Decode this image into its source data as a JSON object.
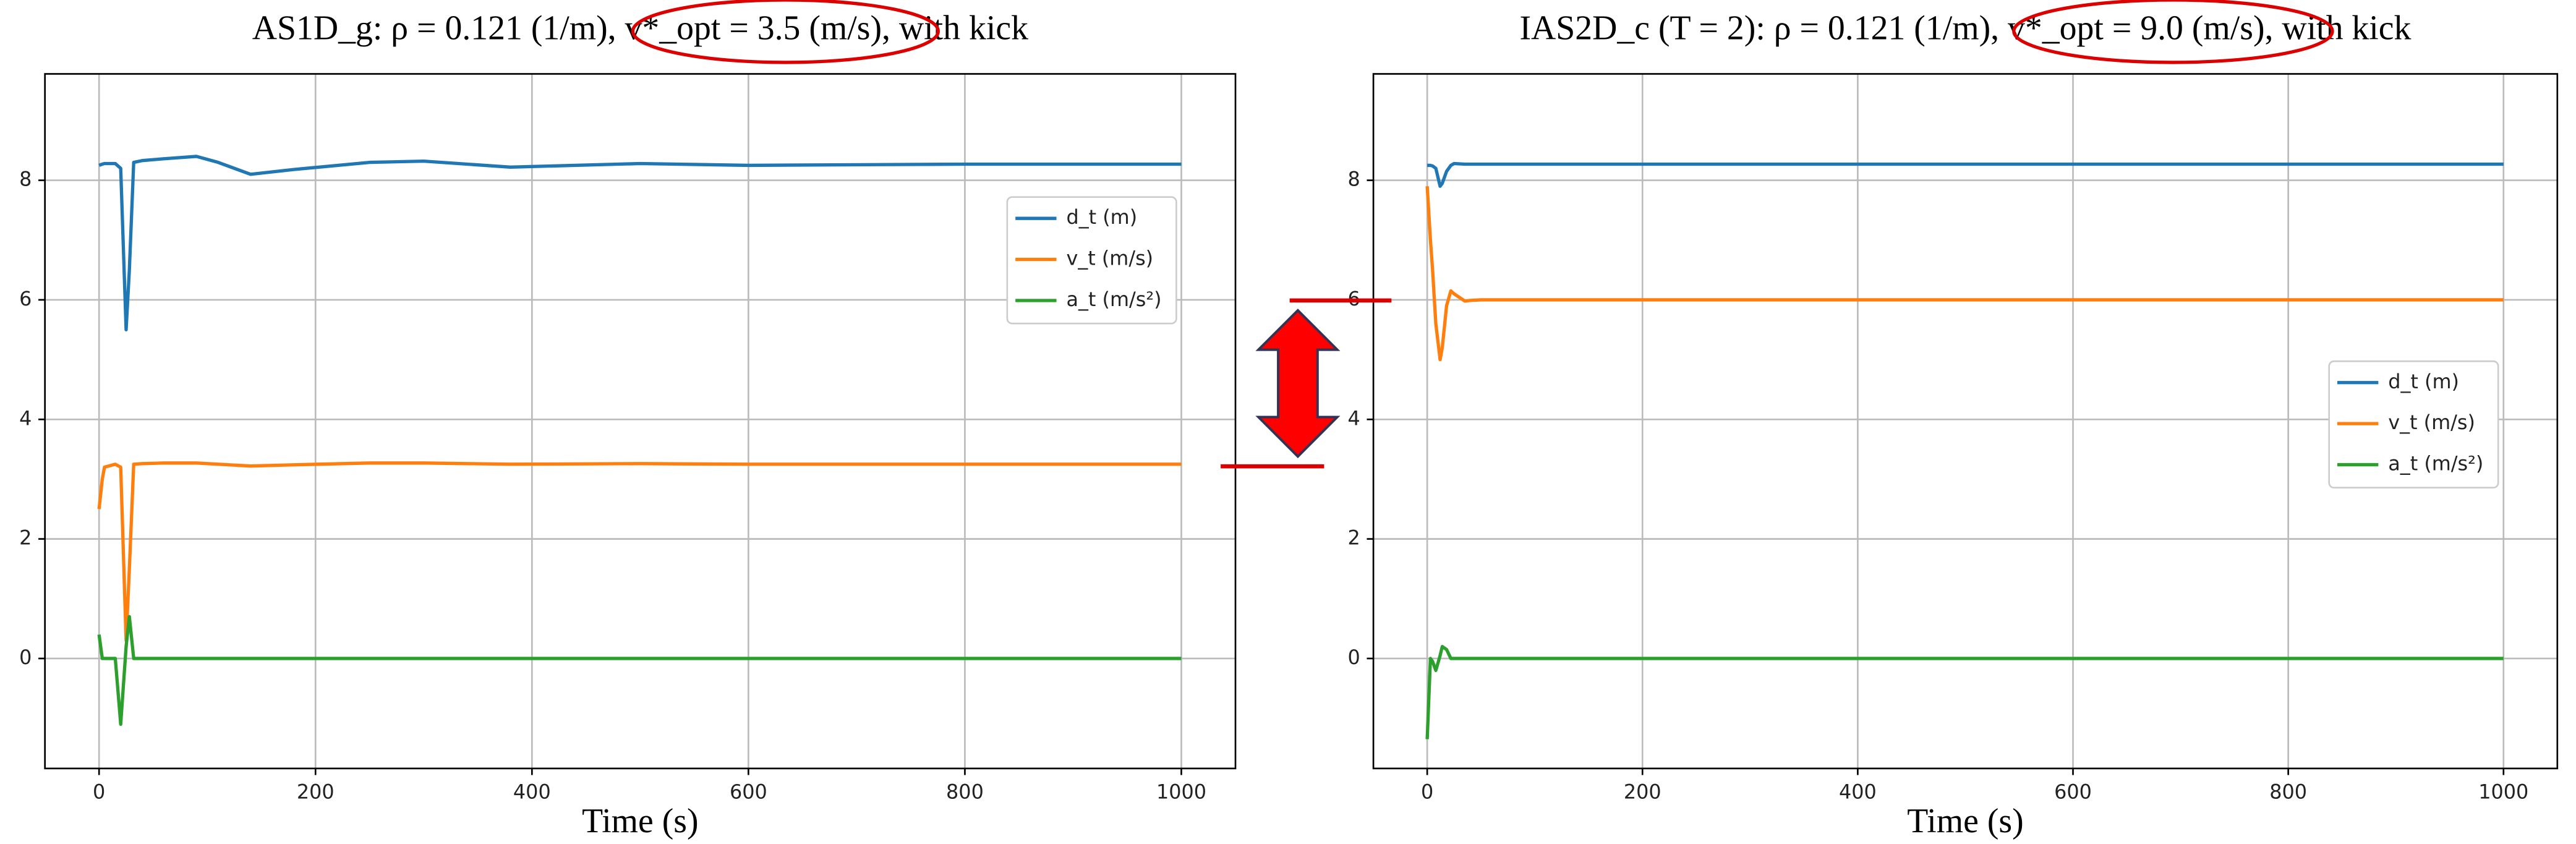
{
  "chart_data": [
    {
      "type": "line",
      "title": "AS1D_g: ρ = 0.121 (1/m), v*_opt = 3.5 (m/s), with kick",
      "x_label": "Time (s)",
      "x": [
        0,
        3,
        5,
        15,
        20,
        25,
        28,
        32,
        40,
        60,
        90,
        110,
        140,
        180,
        250,
        300,
        380,
        500,
        600,
        800,
        1000
      ],
      "series": [
        {
          "name": "d_t (m)",
          "color": "#1f77b4",
          "values": [
            8.25,
            8.27,
            8.28,
            8.28,
            8.2,
            5.5,
            6.5,
            8.3,
            8.33,
            8.36,
            8.4,
            8.3,
            8.1,
            8.18,
            8.3,
            8.32,
            8.22,
            8.28,
            8.25,
            8.27,
            8.27
          ]
        },
        {
          "name": "v_t (m/s)",
          "color": "#ff7f0e",
          "values": [
            2.5,
            3.0,
            3.2,
            3.25,
            3.2,
            0.3,
            1.5,
            3.25,
            3.26,
            3.27,
            3.27,
            3.25,
            3.22,
            3.24,
            3.27,
            3.27,
            3.25,
            3.26,
            3.25,
            3.25,
            3.25
          ]
        },
        {
          "name": "a_t (m/s²)",
          "color": "#2ca02c",
          "values": [
            0.4,
            0,
            0,
            0,
            -1.1,
            0.2,
            0.7,
            0,
            0,
            0,
            0,
            0,
            0,
            0,
            0,
            0,
            0,
            0,
            0,
            0,
            0
          ]
        }
      ],
      "xlim": [
        -50,
        1050
      ],
      "xticks": [
        0,
        200,
        400,
        600,
        800,
        1000
      ],
      "ylim": [
        -1.84,
        9.78
      ],
      "yticks": [
        0,
        2,
        4,
        6,
        8
      ],
      "grid": true,
      "legend": "upper right"
    },
    {
      "type": "line",
      "title": "IAS2D_c (T = 2): ρ = 0.121 (1/m), v*_opt = 9.0 (m/s), with kick",
      "x_label": "Time (s)",
      "x": [
        0,
        3,
        5,
        8,
        12,
        14,
        18,
        22,
        25,
        35,
        40,
        50,
        1000
      ],
      "series": [
        {
          "name": "d_t (m)",
          "color": "#1f77b4",
          "values": [
            8.25,
            8.25,
            8.24,
            8.2,
            7.9,
            7.95,
            8.15,
            8.25,
            8.28,
            8.27,
            8.27,
            8.27,
            8.27
          ]
        },
        {
          "name": "v_t (m/s)",
          "color": "#ff7f0e",
          "values": [
            7.9,
            7.0,
            6.5,
            5.6,
            5.0,
            5.2,
            5.9,
            6.15,
            6.1,
            5.98,
            5.99,
            6.0,
            6.0
          ]
        },
        {
          "name": "a_t (m/s²)",
          "color": "#2ca02c",
          "values": [
            -1.35,
            0,
            -0.05,
            -0.2,
            0.05,
            0.2,
            0.15,
            0,
            0,
            0,
            0,
            0,
            0
          ]
        }
      ],
      "xlim": [
        -50,
        1050
      ],
      "xticks": [
        0,
        200,
        400,
        600,
        800,
        1000
      ],
      "ylim": [
        -1.84,
        9.78
      ],
      "yticks": [
        0,
        2,
        4,
        6,
        8
      ],
      "grid": true,
      "legend": "center right"
    }
  ]
}
